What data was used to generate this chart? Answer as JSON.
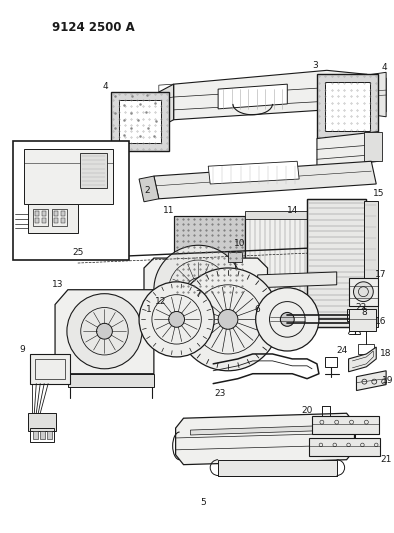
{
  "header": "9124 2500 A",
  "bg": "#f5f5f0",
  "lc": "#1a1a1a",
  "fig_w": 3.94,
  "fig_h": 5.33,
  "dpi": 100
}
